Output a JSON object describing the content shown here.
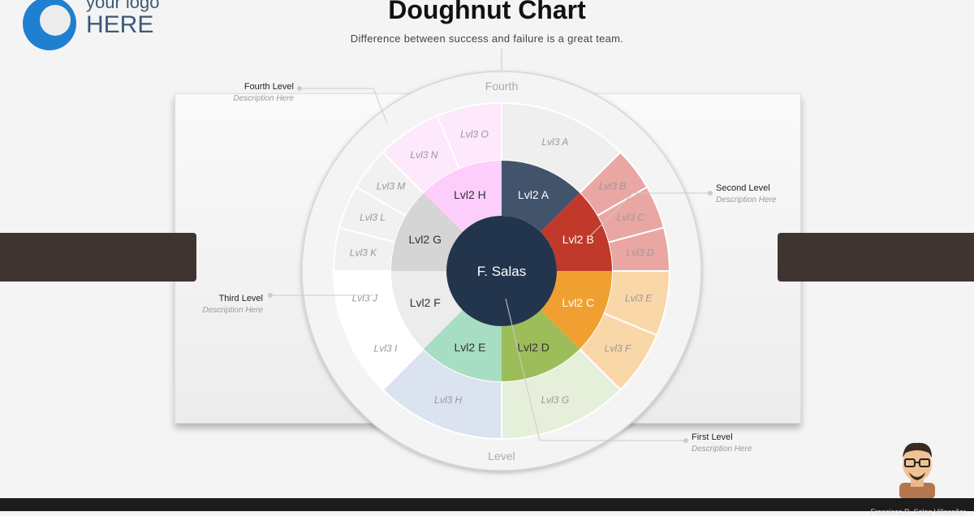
{
  "logo": {
    "line1": "your logo",
    "line2": "HERE"
  },
  "header": {
    "title": "Doughnut Chart",
    "subtitle": "Difference between success and failure is a great team."
  },
  "center_label": "F. Salas",
  "outer_ring": {
    "top_label": "Fourth",
    "bottom_label": "Level"
  },
  "level2": [
    {
      "label": "Lvl2 A",
      "color": "#42546c",
      "text": "#ffffff"
    },
    {
      "label": "Lvl2 B",
      "color": "#c0392b",
      "text": "#ffffff"
    },
    {
      "label": "Lvl2 C",
      "color": "#f0a030",
      "text": "#ffffff"
    },
    {
      "label": "Lvl2 D",
      "color": "#9dbd5a",
      "text": "#333333"
    },
    {
      "label": "Lvl2 E",
      "color": "#a6ddc3",
      "text": "#333333"
    },
    {
      "label": "Lvl2 F",
      "color": "#ececec",
      "text": "#333333"
    },
    {
      "label": "Lvl2 G",
      "color": "#d5d5d5",
      "text": "#333333"
    },
    {
      "label": "Lvl2 H",
      "color": "#fdcdfb",
      "text": "#333333"
    }
  ],
  "level3": [
    {
      "label": "Lvl3 A",
      "color": "#efefef"
    },
    {
      "label": "Lvl3 B",
      "color": "#e9a6a2"
    },
    {
      "label": "Lvl3 C",
      "color": "#e9a6a2"
    },
    {
      "label": "Lvl3 D",
      "color": "#e9a6a2"
    },
    {
      "label": "Lvl3 E",
      "color": "#fad7a8"
    },
    {
      "label": "Lvl3 F",
      "color": "#fad7a8"
    },
    {
      "label": "Lvl3 G",
      "color": "#e5efda"
    },
    {
      "label": "Lvl3 H",
      "color": "#dae3ef"
    },
    {
      "label": "Lvl3 I",
      "color": "#ffffff"
    },
    {
      "label": "Lvl3 J",
      "color": "#ffffff"
    },
    {
      "label": "Lvl3 K",
      "color": "#f1f1f1"
    },
    {
      "label": "Lvl3 L",
      "color": "#f1f1f1"
    },
    {
      "label": "Lvl3 M",
      "color": "#f1f1f1"
    },
    {
      "label": "Lvl3 N",
      "color": "#fde8fc"
    },
    {
      "label": "Lvl3 O",
      "color": "#fde8fc"
    }
  ],
  "callouts": {
    "fourth": {
      "title": "Fourth Level",
      "desc": "Description Here"
    },
    "second": {
      "title": "Second Level",
      "desc": "Description Here"
    },
    "third": {
      "title": "Third Level",
      "desc": "Description Here"
    },
    "first": {
      "title": "First Level",
      "desc": "Description Here"
    }
  },
  "colors": {
    "center": "#22354d",
    "title_text": "#111111"
  },
  "footer": {
    "author": "Francisco R. Salas Villaseñor"
  }
}
